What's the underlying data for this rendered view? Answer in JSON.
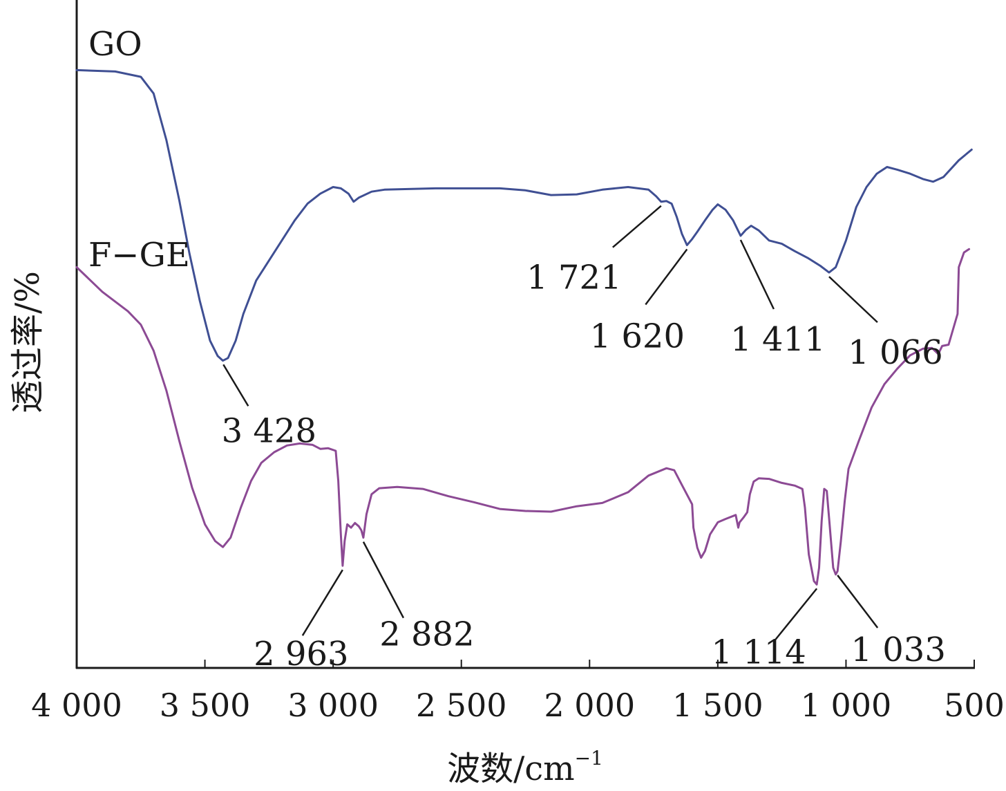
{
  "chart_data": {
    "type": "line",
    "xlabel": "波数/cm",
    "xlabel_sup": "−1",
    "ylabel": "透过率/%",
    "xlim": [
      4000,
      500
    ],
    "x_reversed": true,
    "x_ticks": [
      4000,
      3500,
      3000,
      2500,
      2000,
      1500,
      1000,
      500
    ],
    "x_tick_labels": [
      "4 000",
      "3 500",
      "3 000",
      "2 500",
      "2 000",
      "1 500",
      "1 000",
      "500"
    ],
    "y_ticks": false,
    "ylim": [
      0,
      100
    ],
    "grid": false,
    "series": [
      {
        "name": "GO",
        "color": "#3f4f93",
        "points": [
          [
            4000,
            89.5
          ],
          [
            3850,
            89.3
          ],
          [
            3750,
            88.5
          ],
          [
            3700,
            86
          ],
          [
            3650,
            79
          ],
          [
            3600,
            70
          ],
          [
            3560,
            62
          ],
          [
            3520,
            55
          ],
          [
            3480,
            49
          ],
          [
            3450,
            46.7
          ],
          [
            3430,
            46
          ],
          [
            3410,
            46.4
          ],
          [
            3380,
            49
          ],
          [
            3350,
            53
          ],
          [
            3300,
            58
          ],
          [
            3250,
            61
          ],
          [
            3200,
            64
          ],
          [
            3150,
            67
          ],
          [
            3100,
            69.5
          ],
          [
            3050,
            71
          ],
          [
            3000,
            72
          ],
          [
            2970,
            71.8
          ],
          [
            2940,
            71
          ],
          [
            2920,
            69.8
          ],
          [
            2900,
            70.4
          ],
          [
            2850,
            71.3
          ],
          [
            2800,
            71.6
          ],
          [
            2600,
            71.8
          ],
          [
            2350,
            71.8
          ],
          [
            2250,
            71.5
          ],
          [
            2150,
            70.8
          ],
          [
            2050,
            70.9
          ],
          [
            1950,
            71.6
          ],
          [
            1850,
            72.0
          ],
          [
            1770,
            71.6
          ],
          [
            1740,
            70.6
          ],
          [
            1721,
            69.8
          ],
          [
            1700,
            69.9
          ],
          [
            1680,
            69.5
          ],
          [
            1660,
            67.5
          ],
          [
            1640,
            65
          ],
          [
            1620,
            63.3
          ],
          [
            1600,
            64.2
          ],
          [
            1580,
            65.3
          ],
          [
            1550,
            67
          ],
          [
            1520,
            68.6
          ],
          [
            1500,
            69.4
          ],
          [
            1470,
            68.6
          ],
          [
            1440,
            67
          ],
          [
            1411,
            64.7
          ],
          [
            1390,
            65.6
          ],
          [
            1370,
            66.2
          ],
          [
            1340,
            65.5
          ],
          [
            1300,
            64
          ],
          [
            1250,
            63.5
          ],
          [
            1200,
            62.4
          ],
          [
            1150,
            61.4
          ],
          [
            1100,
            60.2
          ],
          [
            1066,
            59.2
          ],
          [
            1040,
            60
          ],
          [
            1000,
            64
          ],
          [
            960,
            69
          ],
          [
            920,
            72
          ],
          [
            880,
            74
          ],
          [
            840,
            75
          ],
          [
            800,
            74.6
          ],
          [
            750,
            74
          ],
          [
            700,
            73.2
          ],
          [
            660,
            72.8
          ],
          [
            620,
            73.5
          ],
          [
            560,
            76
          ],
          [
            510,
            77.6
          ]
        ]
      },
      {
        "name": "F−GE",
        "color": "#8c4a94",
        "points": [
          [
            4000,
            60
          ],
          [
            3900,
            56.3
          ],
          [
            3800,
            53.4
          ],
          [
            3750,
            51.4
          ],
          [
            3700,
            47.5
          ],
          [
            3650,
            41.5
          ],
          [
            3600,
            34
          ],
          [
            3550,
            27
          ],
          [
            3500,
            21.5
          ],
          [
            3460,
            19
          ],
          [
            3430,
            18.1
          ],
          [
            3400,
            19.5
          ],
          [
            3360,
            24
          ],
          [
            3320,
            28
          ],
          [
            3280,
            30.7
          ],
          [
            3230,
            32.3
          ],
          [
            3180,
            33.3
          ],
          [
            3130,
            33.6
          ],
          [
            3080,
            33.4
          ],
          [
            3050,
            32.8
          ],
          [
            3020,
            32.9
          ],
          [
            2990,
            32.5
          ],
          [
            2980,
            28
          ],
          [
            2970,
            20
          ],
          [
            2963,
            15.3
          ],
          [
            2955,
            19
          ],
          [
            2945,
            21.5
          ],
          [
            2930,
            21
          ],
          [
            2915,
            21.7
          ],
          [
            2900,
            21.2
          ],
          [
            2890,
            20.6
          ],
          [
            2882,
            19.5
          ],
          [
            2870,
            23
          ],
          [
            2850,
            26
          ],
          [
            2820,
            26.9
          ],
          [
            2750,
            27.1
          ],
          [
            2650,
            26.8
          ],
          [
            2550,
            25.7
          ],
          [
            2450,
            24.8
          ],
          [
            2350,
            23.8
          ],
          [
            2250,
            23.5
          ],
          [
            2150,
            23.4
          ],
          [
            2050,
            24.2
          ],
          [
            1950,
            24.7
          ],
          [
            1850,
            26.3
          ],
          [
            1770,
            28.8
          ],
          [
            1700,
            29.9
          ],
          [
            1670,
            29.6
          ],
          [
            1640,
            27.4
          ],
          [
            1600,
            24.5
          ],
          [
            1595,
            21
          ],
          [
            1580,
            18
          ],
          [
            1565,
            16.5
          ],
          [
            1550,
            17.5
          ],
          [
            1530,
            20
          ],
          [
            1500,
            21.8
          ],
          [
            1470,
            22.3
          ],
          [
            1430,
            22.9
          ],
          [
            1420,
            21
          ],
          [
            1415,
            21.8
          ],
          [
            1400,
            22.5
          ],
          [
            1385,
            23.3
          ],
          [
            1375,
            26
          ],
          [
            1360,
            27.9
          ],
          [
            1340,
            28.4
          ],
          [
            1300,
            28.3
          ],
          [
            1250,
            27.7
          ],
          [
            1200,
            27.3
          ],
          [
            1170,
            26.8
          ],
          [
            1160,
            24
          ],
          [
            1145,
            17
          ],
          [
            1125,
            13
          ],
          [
            1114,
            12.5
          ],
          [
            1105,
            15
          ],
          [
            1095,
            22
          ],
          [
            1085,
            26.8
          ],
          [
            1075,
            26.5
          ],
          [
            1065,
            22
          ],
          [
            1050,
            15
          ],
          [
            1040,
            14
          ],
          [
            1033,
            14.5
          ],
          [
            1020,
            19
          ],
          [
            1005,
            25
          ],
          [
            990,
            29.8
          ],
          [
            950,
            34
          ],
          [
            900,
            39
          ],
          [
            850,
            42.5
          ],
          [
            800,
            44.8
          ],
          [
            750,
            46.8
          ],
          [
            700,
            47.8
          ],
          [
            665,
            47.9
          ],
          [
            640,
            47
          ],
          [
            625,
            48.2
          ],
          [
            600,
            48.4
          ],
          [
            565,
            53
          ],
          [
            560,
            60
          ],
          [
            540,
            62.2
          ],
          [
            520,
            62.7
          ]
        ]
      }
    ],
    "annotations": [
      {
        "series": 0,
        "peak": 3428,
        "label": "3 428"
      },
      {
        "series": 0,
        "peak": 1721,
        "label": "1 721"
      },
      {
        "series": 0,
        "peak": 1620,
        "label": "1 620"
      },
      {
        "series": 0,
        "peak": 1411,
        "label": "1 411"
      },
      {
        "series": 0,
        "peak": 1066,
        "label": "1 066"
      },
      {
        "series": 1,
        "peak": 2963,
        "label": "2 963"
      },
      {
        "series": 1,
        "peak": 2882,
        "label": "2 882"
      },
      {
        "series": 1,
        "peak": 1114,
        "label": "1 114"
      },
      {
        "series": 1,
        "peak": 1033,
        "label": "1 033"
      }
    ],
    "series_labels": [
      "GO",
      "F−GE"
    ]
  }
}
